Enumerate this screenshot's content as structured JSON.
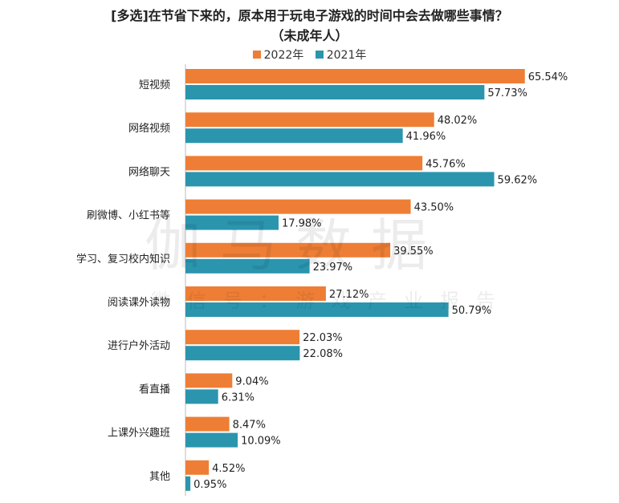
{
  "title_line1": "[多选]在节省下来的，原本用于玩电子游戏的时间中会去做哪些事情？",
  "title_line2": "（未成年人）",
  "watermark": "伽马数据",
  "watermark_sub": "微信号：游戏产业报告",
  "colors": {
    "s2022": "#EE7E35",
    "s2021": "#2B95AE"
  },
  "chart_data": {
    "type": "bar",
    "orientation": "horizontal",
    "title": "[多选]在节省下来的，原本用于玩电子游戏的时间中会去做哪些事情？（未成年人）",
    "categories": [
      "短视频",
      "网络视频",
      "网络聊天",
      "刷微博、小红书等",
      "学习、复习校内知识",
      "阅读课外读物",
      "进行户外活动",
      "看直播",
      "上课外兴趣班",
      "其他"
    ],
    "series": [
      {
        "name": "2022年",
        "color": "#EE7E35",
        "values": [
          65.54,
          48.02,
          45.76,
          43.5,
          39.55,
          27.12,
          22.03,
          9.04,
          8.47,
          4.52
        ],
        "labels": [
          "65.54%",
          "48.02%",
          "45.76%",
          "43.50%",
          "39.55%",
          "27.12%",
          "22.03%",
          "9.04%",
          "8.47%",
          "4.52%"
        ]
      },
      {
        "name": "2021年",
        "color": "#2B95AE",
        "values": [
          57.73,
          41.96,
          59.62,
          17.98,
          23.97,
          50.79,
          22.08,
          6.31,
          10.09,
          0.95
        ],
        "labels": [
          "57.73%",
          "41.96%",
          "59.62%",
          "17.98%",
          "23.97%",
          "50.79%",
          "22.08%",
          "6.31%",
          "10.09%",
          "0.95%"
        ]
      }
    ],
    "legend_position": "top",
    "grid": false
  }
}
